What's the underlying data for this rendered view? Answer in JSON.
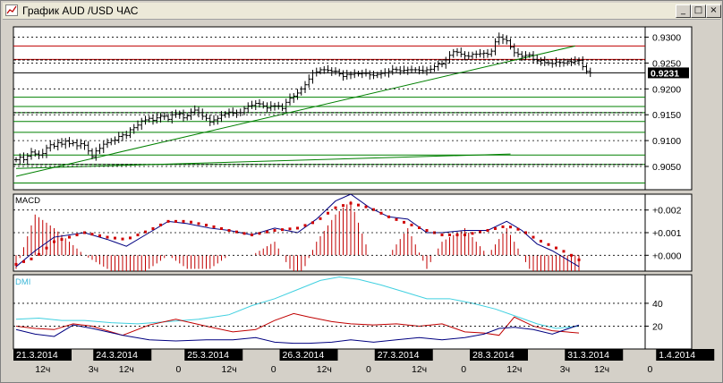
{
  "window": {
    "title": "График AUD /USD ЧАС",
    "buttons": {
      "minimize": "_",
      "maximize": "□",
      "close": "×"
    }
  },
  "colors": {
    "background": "#ffffff",
    "frame": "#d4d0c8",
    "price_bar": "#000000",
    "green_line": "#008000",
    "red_line": "#c00000",
    "macd_line": "#000080",
    "signal_dots": "#d00000",
    "dmi_adx": "#40d0e0",
    "dmi_plus": "#c00000",
    "dmi_minus": "#000080",
    "date_box": "#000000"
  },
  "chart_data": [
    {
      "panel": "price",
      "type": "ohlc",
      "ylim": [
        0.9005,
        0.932
      ],
      "y_ticks": [
        {
          "value": 0.93,
          "label": "0.9300"
        },
        {
          "value": 0.925,
          "label": "0.9250"
        },
        {
          "value": 0.92,
          "label": "0.9200"
        },
        {
          "value": 0.915,
          "label": "0.9150"
        },
        {
          "value": 0.91,
          "label": "0.9100"
        },
        {
          "value": 0.905,
          "label": "0.9050"
        }
      ],
      "current_price": {
        "value": 0.9231,
        "label": "0.9231"
      },
      "green_levels": [
        0.9018,
        0.9054,
        0.9072,
        0.9116,
        0.9137,
        0.9154,
        0.9166,
        0.9184
      ],
      "red_levels": [
        0.9283,
        0.9257
      ],
      "dashed_levels": [
        0.9256,
        0.9154,
        0.9054
      ],
      "black_levels": [
        0.9231
      ],
      "trendlines": [
        {
          "x": [
            0,
            147
          ],
          "y": [
            0.9031,
            0.9283
          ]
        },
        {
          "x": [
            0,
            130
          ],
          "y": [
            0.9046,
            0.9074
          ]
        }
      ],
      "close": [
        0.9063,
        0.9068,
        0.9063,
        0.907,
        0.9078,
        0.9074,
        0.9072,
        0.9075,
        0.9086,
        0.9092,
        0.9089,
        0.9096,
        0.9093,
        0.9099,
        0.9094,
        0.9096,
        0.909,
        0.9094,
        0.9091,
        0.908,
        0.9069,
        0.908,
        0.9085,
        0.9093,
        0.9096,
        0.91,
        0.9101,
        0.9108,
        0.9111,
        0.911,
        0.9121,
        0.9125,
        0.913,
        0.9138,
        0.914,
        0.9143,
        0.9139,
        0.9144,
        0.9147,
        0.9147,
        0.9141,
        0.915,
        0.9151,
        0.9152,
        0.9144,
        0.9148,
        0.9155,
        0.9159,
        0.9154,
        0.9147,
        0.9143,
        0.9136,
        0.914,
        0.9143,
        0.9149,
        0.9152,
        0.9155,
        0.9153,
        0.9154,
        0.9154,
        0.9162,
        0.9167,
        0.9168,
        0.9172,
        0.9171,
        0.9167,
        0.9163,
        0.9167,
        0.9167,
        0.9167,
        0.9162,
        0.9174,
        0.9182,
        0.9186,
        0.9192,
        0.92,
        0.9208,
        0.9219,
        0.9231,
        0.9233,
        0.9237,
        0.9237,
        0.9236,
        0.9234,
        0.9234,
        0.9229,
        0.9224,
        0.9228,
        0.9228,
        0.923,
        0.9229,
        0.923,
        0.923,
        0.9227,
        0.9226,
        0.9228,
        0.923,
        0.9231,
        0.9234,
        0.9238,
        0.9237,
        0.9235,
        0.9236,
        0.9237,
        0.9237,
        0.9237,
        0.9236,
        0.9235,
        0.9237,
        0.9238,
        0.9243,
        0.9248,
        0.9248,
        0.9256,
        0.9265,
        0.9272,
        0.9271,
        0.9267,
        0.9264,
        0.9263,
        0.9267,
        0.9267,
        0.9268,
        0.9269,
        0.9267,
        0.9273,
        0.9291,
        0.93,
        0.9296,
        0.9293,
        0.9281,
        0.927,
        0.9267,
        0.9263,
        0.9265,
        0.9266,
        0.9257,
        0.9254,
        0.9255,
        0.9251,
        0.925,
        0.9249,
        0.9252,
        0.9251,
        0.925,
        0.9253,
        0.9252,
        0.9254,
        0.9255,
        0.9243,
        0.9234,
        0.9231
      ]
    },
    {
      "panel": "macd",
      "type": "line",
      "title": "MACD",
      "ylim": [
        -0.0007,
        0.0027
      ],
      "y_ticks": [
        {
          "value": 0.002,
          "label": "+0.002"
        },
        {
          "value": 0.001,
          "label": "+0.001"
        },
        {
          "value": 0.0,
          "label": "+0.000"
        }
      ],
      "series": [
        {
          "role": "macd",
          "x": [
            0,
            5,
            10,
            18,
            24,
            29,
            35,
            40,
            45,
            51,
            56,
            62,
            68,
            74,
            79,
            84,
            88,
            93,
            98,
            103,
            108,
            112,
            118,
            124,
            129,
            133,
            137,
            141,
            145,
            148
          ],
          "y": [
            -0.0005,
            0.0002,
            0.0008,
            0.001,
            0.0007,
            0.0004,
            0.001,
            0.0015,
            0.0014,
            0.0012,
            0.0011,
            0.0009,
            0.0012,
            0.001,
            0.0016,
            0.0024,
            0.0027,
            0.0021,
            0.0017,
            0.0016,
            0.001,
            0.001,
            0.0011,
            0.0011,
            0.0015,
            0.0011,
            0.0005,
            0.0002,
            -0.0002,
            -0.0005
          ]
        },
        {
          "role": "signal",
          "x": [
            0,
            5,
            10,
            18,
            24,
            29,
            35,
            40,
            45,
            51,
            56,
            62,
            68,
            74,
            79,
            84,
            88,
            93,
            98,
            103,
            108,
            112,
            118,
            124,
            129,
            133,
            137,
            141,
            145,
            148
          ],
          "y": [
            -0.0004,
            -0.0001,
            0.0006,
            0.001,
            0.0008,
            0.0007,
            0.0011,
            0.0015,
            0.0015,
            0.0013,
            0.0011,
            0.0009,
            0.0011,
            0.0012,
            0.0015,
            0.0021,
            0.0023,
            0.0021,
            0.0017,
            0.0014,
            0.0011,
            0.0009,
            0.0009,
            0.0011,
            0.0013,
            0.0011,
            0.0007,
            0.0004,
            0.0001,
            -0.0002
          ]
        }
      ]
    },
    {
      "panel": "dmi",
      "type": "line",
      "title": "DMI",
      "ylim": [
        0,
        65
      ],
      "y_ticks": [
        {
          "value": 40,
          "label": "40"
        },
        {
          "value": 20,
          "label": "20"
        }
      ],
      "series": [
        {
          "role": "adx",
          "x": [
            0,
            6,
            12,
            18,
            25,
            32,
            40,
            48,
            56,
            62,
            68,
            74,
            80,
            85,
            90,
            96,
            102,
            108,
            114,
            120,
            126,
            132,
            137,
            142,
            148
          ],
          "y": [
            26,
            27,
            25,
            25,
            23,
            22,
            24,
            26,
            30,
            38,
            44,
            52,
            60,
            63,
            61,
            56,
            50,
            44,
            44,
            40,
            35,
            28,
            22,
            18,
            20
          ]
        },
        {
          "role": "plus_di",
          "x": [
            0,
            5,
            10,
            15,
            20,
            28,
            35,
            42,
            50,
            57,
            63,
            68,
            73,
            77,
            83,
            88,
            94,
            100,
            106,
            112,
            118,
            123,
            127,
            131,
            136,
            141,
            148
          ],
          "y": [
            20,
            18,
            17,
            22,
            20,
            12,
            21,
            26,
            20,
            15,
            17,
            25,
            31,
            28,
            24,
            22,
            21,
            22,
            20,
            22,
            15,
            14,
            12,
            28,
            20,
            16,
            14
          ]
        },
        {
          "role": "minus_di",
          "x": [
            0,
            5,
            10,
            15,
            20,
            28,
            35,
            42,
            50,
            57,
            63,
            68,
            73,
            77,
            83,
            88,
            94,
            100,
            106,
            112,
            118,
            123,
            127,
            131,
            136,
            141,
            148
          ],
          "y": [
            17,
            13,
            11,
            21,
            18,
            12,
            8,
            7,
            8,
            8,
            10,
            6,
            5,
            5,
            6,
            8,
            6,
            8,
            10,
            8,
            10,
            13,
            18,
            19,
            17,
            13,
            21
          ]
        }
      ]
    }
  ],
  "time_axis": {
    "dates": [
      {
        "label": "21.3.2014",
        "bar": 0
      },
      {
        "label": "24.3.2014",
        "bar": 21
      },
      {
        "label": "25.3.2014",
        "bar": 45
      },
      {
        "label": "26.3.2014",
        "bar": 70
      },
      {
        "label": "27.3.2014",
        "bar": 95
      },
      {
        "label": "28.3.2014",
        "bar": 120
      },
      {
        "label": "31.3.2014",
        "bar": 145
      },
      {
        "label": "1.4.2014",
        "bar": 169
      }
    ],
    "hours": [
      {
        "label": "12ч",
        "bar": 5
      },
      {
        "label": "3ч",
        "bar": 19
      },
      {
        "label": "12ч",
        "bar": 27
      },
      {
        "label": "0",
        "bar": 42
      },
      {
        "label": "12ч",
        "bar": 54
      },
      {
        "label": "0",
        "bar": 67
      },
      {
        "label": "12ч",
        "bar": 79
      },
      {
        "label": "0",
        "bar": 92
      },
      {
        "label": "12ч",
        "bar": 104
      },
      {
        "label": "0",
        "bar": 117
      },
      {
        "label": "12ч",
        "bar": 129
      },
      {
        "label": "3ч",
        "bar": 143
      },
      {
        "label": "12ч",
        "bar": 152
      },
      {
        "label": "0",
        "bar": 166
      }
    ]
  }
}
